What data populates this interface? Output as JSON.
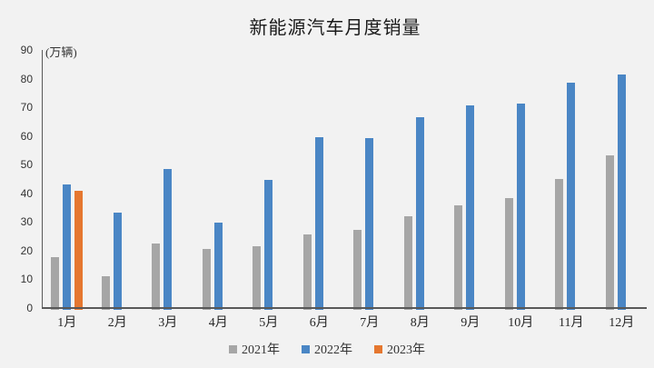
{
  "title": "新能源汽车月度销量",
  "unit_label": "(万辆)",
  "colors": {
    "background": "#f2f2f2",
    "axis": "#595959",
    "series_2021": "#a6a6a6",
    "series_2022": "#4a86c5",
    "series_2023": "#e5772f",
    "text": "#333333",
    "title_text": "#1a1a1a"
  },
  "chart_data": {
    "type": "bar",
    "title": "新能源汽车月度销量",
    "ylabel": "(万辆)",
    "xlabel": "",
    "categories": [
      "1月",
      "2月",
      "3月",
      "4月",
      "5月",
      "6月",
      "7月",
      "8月",
      "9月",
      "10月",
      "11月",
      "12月"
    ],
    "series": [
      {
        "name": "2021年",
        "color": "#a6a6a6",
        "values": [
          17.9,
          11.0,
          22.6,
          20.6,
          21.7,
          25.6,
          27.1,
          32.1,
          35.7,
          38.3,
          45.0,
          53.1
        ]
      },
      {
        "name": "2022年",
        "color": "#4a86c5",
        "values": [
          43.1,
          33.4,
          48.4,
          29.9,
          44.7,
          59.6,
          59.3,
          66.6,
          70.8,
          71.4,
          78.6,
          81.4
        ]
      },
      {
        "name": "2023年",
        "color": "#e5772f",
        "values": [
          40.8,
          null,
          null,
          null,
          null,
          null,
          null,
          null,
          null,
          null,
          null,
          null
        ]
      }
    ],
    "ylim": [
      0,
      90
    ],
    "ytick_step": 10,
    "yticks": [
      0,
      10,
      20,
      30,
      40,
      50,
      60,
      70,
      80,
      90
    ],
    "grid": false,
    "legend_position": "bottom"
  }
}
